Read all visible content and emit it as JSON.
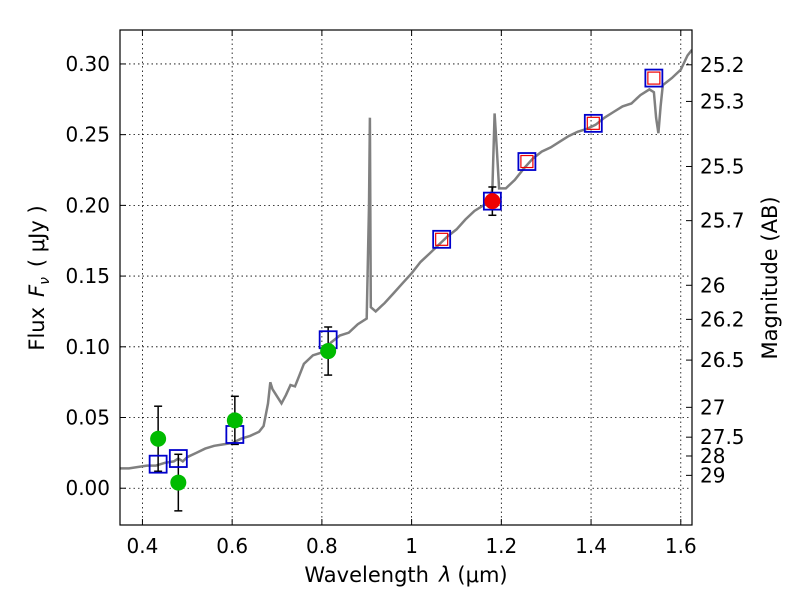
{
  "chart_data": {
    "type": "scatter",
    "xlabel_text": "Wavelength",
    "xlabel_symbol": "λ",
    "xlabel_unit": "(μm)",
    "ylabel_text": "Flux",
    "ylabel_symbol_main": "F",
    "ylabel_symbol_sub": "ν",
    "ylabel_unit": "( μJy )",
    "y2label": "Magnitude (AB)",
    "xlim": [
      0.35,
      1.625
    ],
    "ylim": [
      -0.026,
      0.324
    ],
    "xticks": [
      0.4,
      0.6,
      0.8,
      1.0,
      1.2,
      1.4,
      1.6
    ],
    "xtick_labels": [
      "0.4",
      "0.6",
      "0.8",
      "1",
      "1.2",
      "1.4",
      "1.6"
    ],
    "yticks": [
      0.0,
      0.05,
      0.1,
      0.15,
      0.2,
      0.25,
      0.3
    ],
    "ytick_labels": [
      "0.00",
      "0.05",
      "0.10",
      "0.15",
      "0.20",
      "0.25",
      "0.30"
    ],
    "mag_ticks": [
      {
        "label": "25.2",
        "flux": 0.2994
      },
      {
        "label": "25.3",
        "flux": 0.2735
      },
      {
        "label": "25.5",
        "flux": 0.2275
      },
      {
        "label": "25.7",
        "flux": 0.1892
      },
      {
        "label": "26",
        "flux": 0.1435
      },
      {
        "label": "26.2",
        "flux": 0.1194
      },
      {
        "label": "26.5",
        "flux": 0.0906
      },
      {
        "label": "27",
        "flux": 0.0572
      },
      {
        "label": "27.5",
        "flux": 0.0361
      },
      {
        "label": "28",
        "flux": 0.0228
      },
      {
        "label": "29",
        "flux": 0.0091
      }
    ],
    "grid": true,
    "series": [
      {
        "name": "model_sed",
        "style": "line",
        "color": "#808080",
        "points": [
          [
            0.35,
            0.014
          ],
          [
            0.37,
            0.014
          ],
          [
            0.39,
            0.015
          ],
          [
            0.41,
            0.016
          ],
          [
            0.43,
            0.016
          ],
          [
            0.45,
            0.018
          ],
          [
            0.47,
            0.019
          ],
          [
            0.48,
            0.021
          ],
          [
            0.49,
            0.019
          ],
          [
            0.5,
            0.022
          ],
          [
            0.52,
            0.025
          ],
          [
            0.54,
            0.028
          ],
          [
            0.56,
            0.03
          ],
          [
            0.58,
            0.031
          ],
          [
            0.6,
            0.032
          ],
          [
            0.62,
            0.035
          ],
          [
            0.64,
            0.037
          ],
          [
            0.66,
            0.04
          ],
          [
            0.67,
            0.044
          ],
          [
            0.675,
            0.052
          ],
          [
            0.68,
            0.06
          ],
          [
            0.685,
            0.075
          ],
          [
            0.69,
            0.07
          ],
          [
            0.7,
            0.065
          ],
          [
            0.71,
            0.06
          ],
          [
            0.72,
            0.066
          ],
          [
            0.73,
            0.073
          ],
          [
            0.74,
            0.072
          ],
          [
            0.75,
            0.08
          ],
          [
            0.76,
            0.088
          ],
          [
            0.78,
            0.094
          ],
          [
            0.8,
            0.096
          ],
          [
            0.82,
            0.103
          ],
          [
            0.84,
            0.108
          ],
          [
            0.86,
            0.11
          ],
          [
            0.88,
            0.116
          ],
          [
            0.9,
            0.12
          ],
          [
            0.905,
            0.2
          ],
          [
            0.907,
            0.262
          ],
          [
            0.909,
            0.128
          ],
          [
            0.92,
            0.125
          ],
          [
            0.94,
            0.131
          ],
          [
            0.96,
            0.138
          ],
          [
            0.98,
            0.145
          ],
          [
            1.0,
            0.152
          ],
          [
            1.02,
            0.16
          ],
          [
            1.04,
            0.166
          ],
          [
            1.06,
            0.172
          ],
          [
            1.08,
            0.178
          ],
          [
            1.1,
            0.183
          ],
          [
            1.12,
            0.19
          ],
          [
            1.14,
            0.196
          ],
          [
            1.16,
            0.2
          ],
          [
            1.175,
            0.204
          ],
          [
            1.18,
            0.212
          ],
          [
            1.185,
            0.265
          ],
          [
            1.19,
            0.24
          ],
          [
            1.195,
            0.212
          ],
          [
            1.21,
            0.212
          ],
          [
            1.23,
            0.218
          ],
          [
            1.25,
            0.226
          ],
          [
            1.27,
            0.233
          ],
          [
            1.29,
            0.238
          ],
          [
            1.31,
            0.241
          ],
          [
            1.33,
            0.245
          ],
          [
            1.35,
            0.249
          ],
          [
            1.37,
            0.252
          ],
          [
            1.39,
            0.254
          ],
          [
            1.41,
            0.257
          ],
          [
            1.43,
            0.262
          ],
          [
            1.45,
            0.266
          ],
          [
            1.47,
            0.27
          ],
          [
            1.49,
            0.272
          ],
          [
            1.51,
            0.278
          ],
          [
            1.53,
            0.282
          ],
          [
            1.54,
            0.28
          ],
          [
            1.545,
            0.262
          ],
          [
            1.55,
            0.251
          ],
          [
            1.555,
            0.27
          ],
          [
            1.56,
            0.285
          ],
          [
            1.58,
            0.29
          ],
          [
            1.6,
            0.296
          ],
          [
            1.615,
            0.306
          ],
          [
            1.625,
            0.31
          ]
        ]
      },
      {
        "name": "model_photometry",
        "style": "open-square",
        "color": "#0000cc",
        "x": [
          0.435,
          0.48,
          0.606,
          0.814,
          1.067,
          1.18,
          1.257,
          1.405,
          1.54
        ],
        "y": [
          0.017,
          0.021,
          0.038,
          0.105,
          0.176,
          0.203,
          0.231,
          0.258,
          0.29
        ]
      },
      {
        "name": "observed_hst_optical",
        "style": "filled-circle",
        "color": "#00bb00",
        "x": [
          0.435,
          0.48,
          0.606,
          0.814
        ],
        "y": [
          0.035,
          0.004,
          0.048,
          0.097
        ],
        "yerr": [
          0.023,
          0.02,
          0.017,
          0.017
        ]
      },
      {
        "name": "observed_nir",
        "style": "filled-circle",
        "color": "#ee0000",
        "x": [
          1.18
        ],
        "y": [
          0.203
        ],
        "yerr": [
          0.01
        ]
      },
      {
        "name": "model_photometry_inner",
        "style": "open-square-small",
        "color": "#ee0000",
        "x": [
          1.067,
          1.257,
          1.405,
          1.54
        ],
        "y": [
          0.176,
          0.231,
          0.258,
          0.29
        ]
      }
    ]
  }
}
